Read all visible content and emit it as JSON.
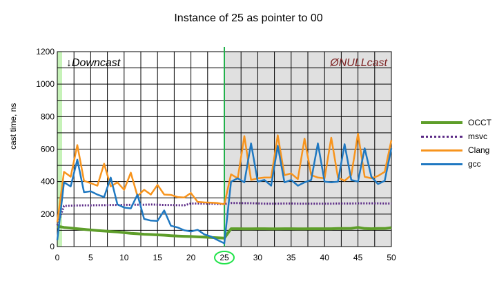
{
  "chart_data": {
    "type": "line",
    "title": "Instance of 25 as pointer to 00",
    "xlabel": "",
    "ylabel": "cast time, ns",
    "xlim": [
      0,
      50
    ],
    "ylim": [
      0,
      1200
    ],
    "xticks": [
      0,
      5,
      10,
      15,
      20,
      25,
      30,
      35,
      40,
      45,
      50
    ],
    "yticks": [
      0,
      200,
      400,
      600,
      800,
      1000,
      1200
    ],
    "highlighted_tick": 25,
    "regions": [
      {
        "label": "↓Downcast",
        "from": 0,
        "to": 25,
        "fill": "#ffffff"
      },
      {
        "label": "ØNULLcast",
        "from": 25,
        "to": 50,
        "fill": "#e0e0e0"
      }
    ],
    "region_label_colors": [
      "#000000",
      "#7b1f1f"
    ],
    "grid": true,
    "legend_position": "right",
    "x": [
      0,
      1,
      2,
      3,
      4,
      5,
      6,
      7,
      8,
      9,
      10,
      11,
      12,
      13,
      14,
      15,
      16,
      17,
      18,
      19,
      20,
      21,
      22,
      23,
      24,
      25,
      26,
      27,
      28,
      29,
      30,
      31,
      32,
      33,
      34,
      35,
      36,
      37,
      38,
      39,
      40,
      41,
      42,
      43,
      44,
      45,
      46,
      47,
      48,
      49,
      50
    ],
    "series": [
      {
        "name": "OCCT",
        "color": "#5e9e2a",
        "width": 4,
        "dash": "",
        "values": [
          125,
          118,
          114,
          110,
          106,
          102,
          99,
          96,
          93,
          90,
          86,
          82,
          79,
          76,
          74,
          72,
          70,
          67,
          65,
          63,
          62,
          60,
          58,
          56,
          54,
          52,
          110,
          110,
          109,
          109,
          110,
          110,
          109,
          109,
          110,
          110,
          109,
          109,
          110,
          110,
          110,
          110,
          111,
          111,
          112,
          118,
          111,
          110,
          111,
          111,
          116
        ]
      },
      {
        "name": "msvc",
        "color": "#5b2a86",
        "width": 3,
        "dash": "2,2",
        "values": [
          130,
          250,
          252,
          253,
          254,
          254,
          255,
          255,
          256,
          256,
          257,
          257,
          258,
          258,
          259,
          258,
          256,
          256,
          255,
          254,
          265,
          265,
          264,
          264,
          262,
          262,
          268,
          268,
          267,
          267,
          266,
          264,
          264,
          264,
          265,
          265,
          264,
          264,
          264,
          264,
          264,
          264,
          265,
          265,
          265,
          266,
          266,
          266,
          266,
          265,
          265
        ]
      },
      {
        "name": "Clang",
        "color": "#f7941d",
        "width": 2.5,
        "dash": "",
        "values": [
          150,
          460,
          430,
          625,
          405,
          390,
          375,
          510,
          370,
          395,
          350,
          455,
          310,
          350,
          320,
          380,
          320,
          318,
          305,
          302,
          330,
          275,
          272,
          270,
          268,
          260,
          445,
          420,
          680,
          410,
          420,
          425,
          425,
          685,
          440,
          450,
          415,
          665,
          440,
          425,
          420,
          670,
          425,
          405,
          440,
          695,
          430,
          420,
          435,
          460,
          655
        ]
      },
      {
        "name": "gcc",
        "color": "#1f78c1",
        "width": 2.5,
        "dash": "",
        "values": [
          40,
          395,
          370,
          535,
          335,
          340,
          320,
          305,
          425,
          260,
          240,
          235,
          320,
          170,
          160,
          158,
          222,
          128,
          118,
          100,
          93,
          103,
          75,
          62,
          40,
          20,
          400,
          420,
          395,
          635,
          400,
          410,
          375,
          620,
          395,
          410,
          375,
          395,
          410,
          635,
          400,
          395,
          400,
          630,
          410,
          400,
          605,
          430,
          385,
          405,
          605
        ]
      }
    ]
  }
}
